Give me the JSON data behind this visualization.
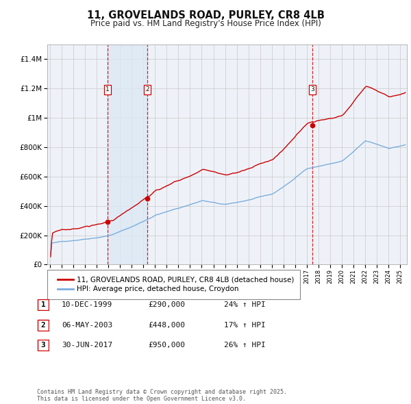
{
  "title": "11, GROVELANDS ROAD, PURLEY, CR8 4LB",
  "subtitle": "Price paid vs. HM Land Registry's House Price Index (HPI)",
  "red_label": "11, GROVELANDS ROAD, PURLEY, CR8 4LB (detached house)",
  "blue_label": "HPI: Average price, detached house, Croydon",
  "transactions": [
    {
      "num": 1,
      "date": "10-DEC-1999",
      "year": 1999.92,
      "price": 290000,
      "pct": "24% ↑ HPI"
    },
    {
      "num": 2,
      "date": "06-MAY-2003",
      "year": 2003.35,
      "price": 448000,
      "pct": "17% ↑ HPI"
    },
    {
      "num": 3,
      "date": "30-JUN-2017",
      "year": 2017.5,
      "price": 950000,
      "pct": "26% ↑ HPI"
    }
  ],
  "copyright": "Contains HM Land Registry data © Crown copyright and database right 2025.\nThis data is licensed under the Open Government Licence v3.0.",
  "ylim": [
    0,
    1500000
  ],
  "yticks": [
    0,
    200000,
    400000,
    600000,
    800000,
    1000000,
    1200000,
    1400000
  ],
  "bg_color": "#ffffff",
  "plot_bg": "#eef2f8",
  "grid_color": "#c8c8c8",
  "red_color": "#cc0000",
  "blue_color": "#7aaddd",
  "shade_color": "#dce8f5",
  "xstart": 1994.75,
  "xend": 2025.6
}
